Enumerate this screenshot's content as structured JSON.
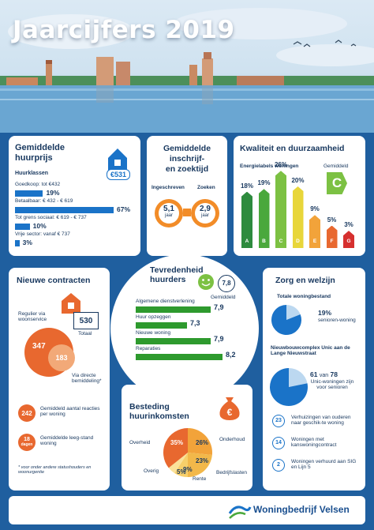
{
  "header": {
    "title": "Jaarcijfers 2019"
  },
  "huurprijs": {
    "title_l1": "Gemiddelde",
    "title_l2": "huurprijs",
    "badge": "€531",
    "sub": "Huurklassen",
    "rows": [
      {
        "label": "Goedkoop: tot €432",
        "pct": "19%",
        "v": 19
      },
      {
        "label": "Betaalbaar: € 432 - € 619",
        "pct": "67%",
        "v": 67
      },
      {
        "label": "Tot grens sociaal: € 619 - € 737",
        "pct": "10%",
        "v": 10
      },
      {
        "label": "Vrije sector: vanaf € 737",
        "pct": "3%",
        "v": 3
      }
    ]
  },
  "zoektijd": {
    "l1": "Gemiddelde",
    "l2": "inschrijf-",
    "l3": "en zoektijd",
    "a_label": "Ingeschreven",
    "a_val": "5,1",
    "a_unit": "jaar",
    "b_label": "Zoeken",
    "b_val": "2,9",
    "b_unit": "jaar"
  },
  "kwaliteit": {
    "title": "Kwaliteit en duurzaamheid",
    "sub": "Energielabels woningen",
    "avg_label": "Gemiddeld",
    "avg": "C",
    "bars": [
      {
        "pct": "18%",
        "label": "A",
        "v": 18,
        "color": "#2e8b3e"
      },
      {
        "pct": "19%",
        "label": "B",
        "v": 19,
        "color": "#4aa83c"
      },
      {
        "pct": "26%",
        "label": "C",
        "v": 26,
        "color": "#7cc143"
      },
      {
        "pct": "20%",
        "label": "D",
        "v": 20,
        "color": "#e8d63a"
      },
      {
        "pct": "9%",
        "label": "E",
        "v": 9,
        "color": "#f2a33a"
      },
      {
        "pct": "5%",
        "label": "F",
        "v": 5,
        "color": "#e8682f"
      },
      {
        "pct": "3%",
        "label": "G",
        "v": 3,
        "color": "#d6302f"
      }
    ]
  },
  "contracten": {
    "title": "Nieuwe contracten",
    "regulier": "Regulier via woonservice",
    "total": "530",
    "total_label": "Totaal",
    "big": "347",
    "small": "183",
    "direct": "Via directe bemiddeling*",
    "reacties_val": "242",
    "reacties_label": "Gemiddeld aantal reacties per woning",
    "leeg_val": "18",
    "leeg_unit": "dagen",
    "leeg_label": "Gemiddelde leeg-stand woning",
    "foot": "* voor onder andere statushouders en woonurgentie"
  },
  "tevreden": {
    "l1": "Tevredenheid",
    "l2": "huurders",
    "score": "7,8",
    "score_label": "Gemiddeld",
    "rows": [
      {
        "label": "Algemene dienstverlening",
        "val": "7,9",
        "v": 7.9
      },
      {
        "label": "Huur opzeggen",
        "val": "7,3",
        "v": 7.3
      },
      {
        "label": "Nieuwe woning",
        "val": "7,9",
        "v": 7.9
      },
      {
        "label": "Reparaties",
        "val": "8,2",
        "v": 8.2
      }
    ]
  },
  "besteding": {
    "l1": "Besteding",
    "l2": "huurinkomsten",
    "slices": [
      {
        "label": "Overheid",
        "pct": "35%",
        "v": 35,
        "color": "#e8682f"
      },
      {
        "label": "Onderhoud",
        "pct": "26%",
        "v": 26,
        "color": "#f2a33a"
      },
      {
        "label": "Bedrijfslasten",
        "pct": "23%",
        "v": 23,
        "color": "#f2b84a"
      },
      {
        "label": "Rente",
        "pct": "9%",
        "v": 9,
        "color": "#f7cf6a"
      },
      {
        "label": "Overig",
        "pct": "5%",
        "v": 5,
        "color": "#fae29a"
      }
    ]
  },
  "zorg": {
    "title": "Zorg en welzijn",
    "sub1": "Totale woningbestand",
    "p1": "19%",
    "p1_label": "senioren-woning",
    "v1": 19,
    "sub2": "Nieuwbouwcomplex Unic aan de Lange Nieuwstraat",
    "n2a": "61",
    "n2_van": "van",
    "n2b": "78",
    "n2_label": "Unic-woningen zijn voor senioren",
    "v2": 78.2,
    "items": [
      {
        "n": "23",
        "label": "Verhuizingen van ouderen naar geschik-te woning"
      },
      {
        "n": "14",
        "label": "Woningen met kanswoningcontract"
      },
      {
        "n": "2",
        "label": "Woningen verhuurd aan SIG en Lijn 5"
      }
    ]
  },
  "footer": {
    "brand": "Woningbedrijf Velsen"
  }
}
